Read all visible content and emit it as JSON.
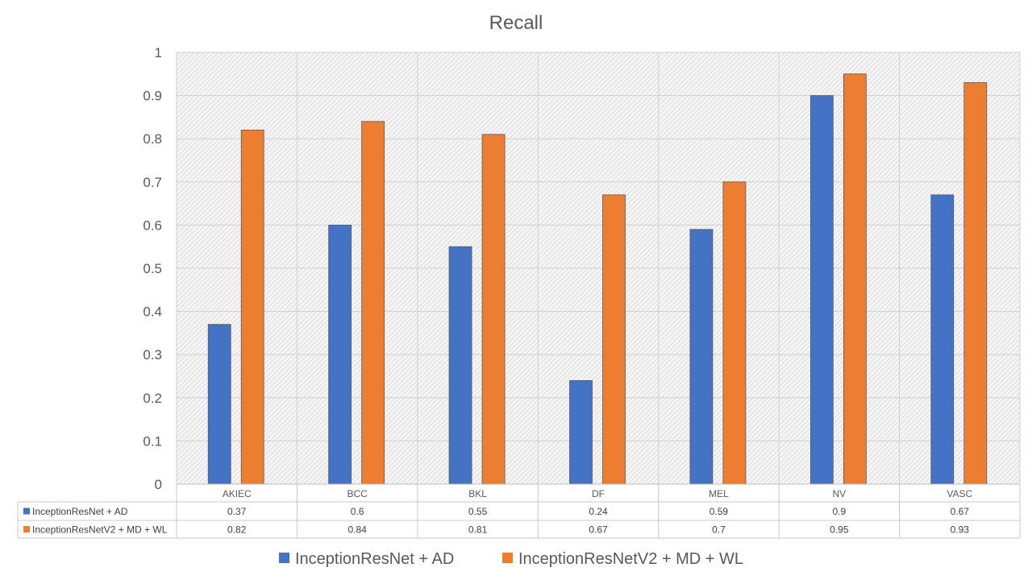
{
  "chart_data": {
    "type": "bar",
    "title": "Recall",
    "categories": [
      "AKIEC",
      "BCC",
      "BKL",
      "DF",
      "MEL",
      "NV",
      "VASC"
    ],
    "series": [
      {
        "name": "InceptionResNet + AD",
        "color": "#4472c4",
        "values": [
          0.37,
          0.6,
          0.55,
          0.24,
          0.59,
          0.9,
          0.67
        ]
      },
      {
        "name": "InceptionResNetV2 + MD + WL",
        "color": "#ed7d31",
        "values": [
          0.82,
          0.84,
          0.81,
          0.67,
          0.7,
          0.95,
          0.93
        ]
      }
    ],
    "ylim": [
      0,
      1
    ],
    "yticks": [
      "0",
      "0.1",
      "0.2",
      "0.3",
      "0.4",
      "0.5",
      "0.6",
      "0.7",
      "0.8",
      "0.9",
      "1"
    ],
    "table": {
      "rows": [
        [
          "0.37",
          "0.6",
          "0.55",
          "0.24",
          "0.59",
          "0.9",
          "0.67"
        ],
        [
          "0.82",
          "0.84",
          "0.81",
          "0.67",
          "0.7",
          "0.95",
          "0.93"
        ]
      ]
    },
    "grid": true,
    "legend_position": "bottom"
  }
}
